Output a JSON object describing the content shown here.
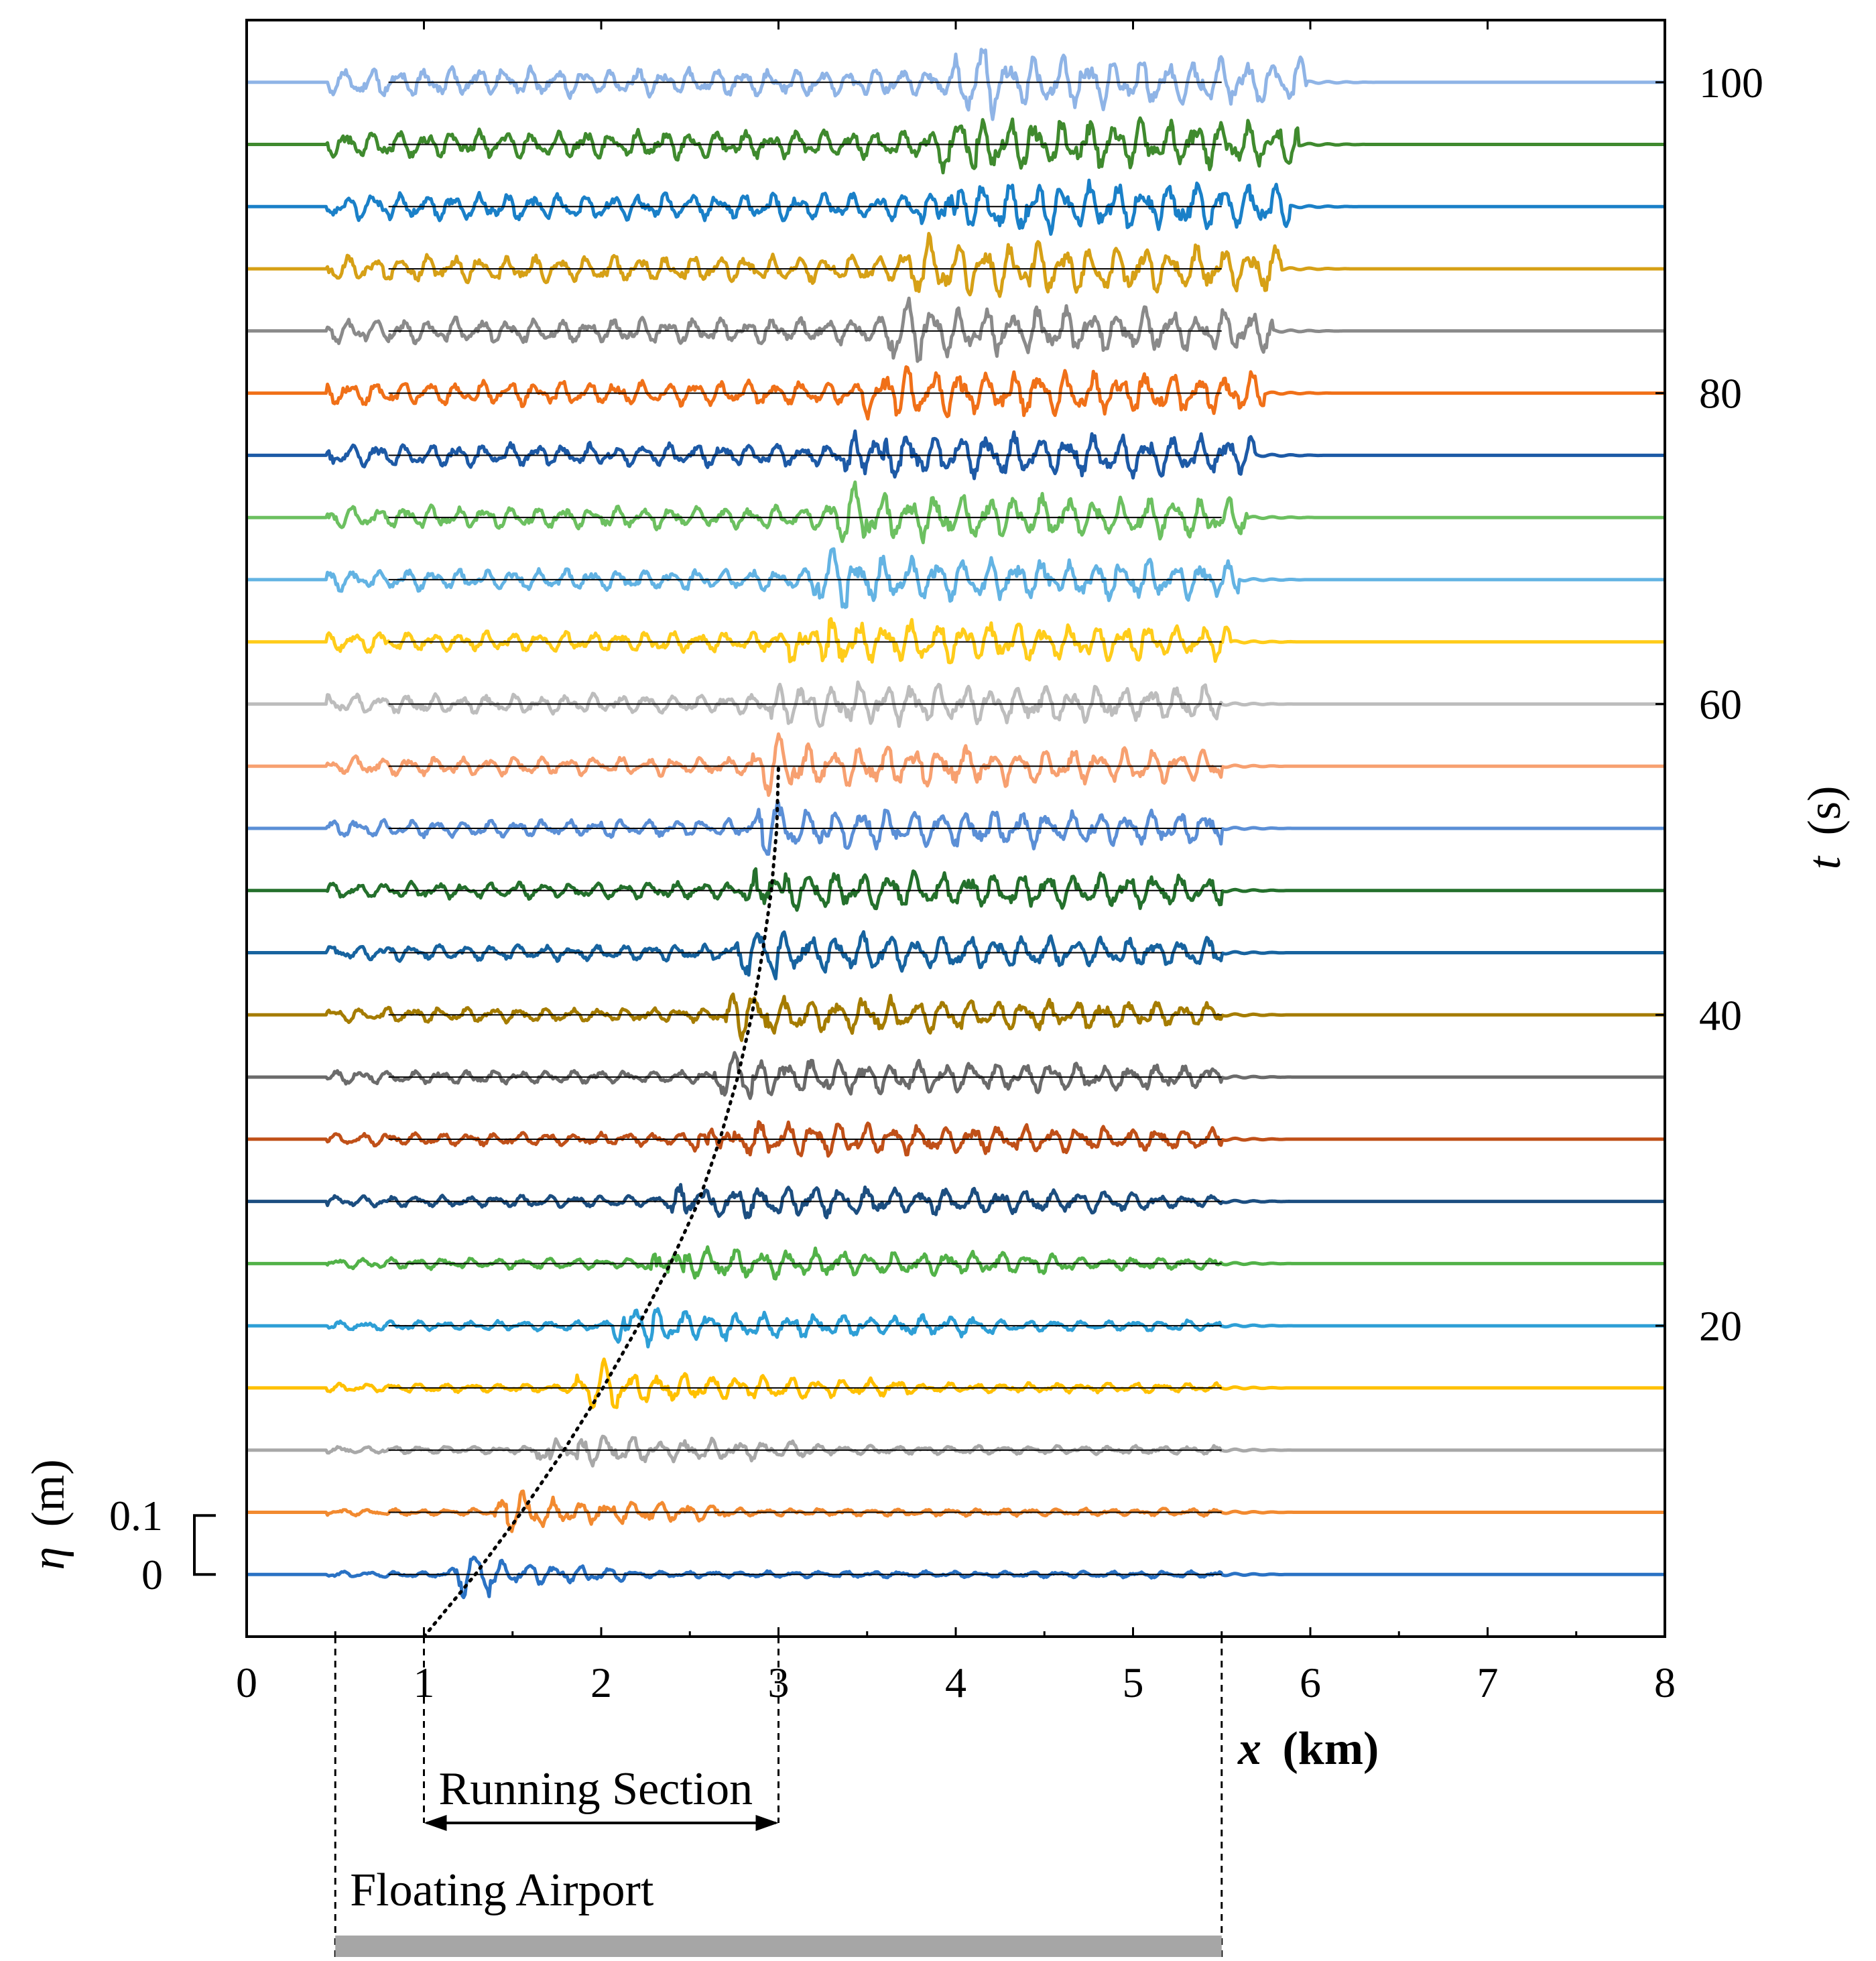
{
  "chart_data": {
    "type": "line",
    "description_axes": {
      "x_label_symbol": "x",
      "x_label_unit": "(km)",
      "y_label_symbol": "t",
      "y_label_unit": "(s)",
      "eta_label_symbol": "η",
      "eta_label_unit": "(m)"
    },
    "xlim": [
      0,
      8
    ],
    "x_ticks": [
      "0",
      "1",
      "2",
      "3",
      "4",
      "5",
      "6",
      "7",
      "8"
    ],
    "tlim": [
      0,
      104
    ],
    "t_ticks": [
      {
        "value": 20,
        "label": "20"
      },
      {
        "value": 40,
        "label": "40"
      },
      {
        "value": 60,
        "label": "60"
      },
      {
        "value": 80,
        "label": "80"
      },
      {
        "value": 100,
        "label": "100"
      }
    ],
    "eta_scale": {
      "values": [
        0,
        0.1
      ],
      "labels": [
        "0",
        "0.1"
      ]
    },
    "trace_times": [
      4,
      8,
      12,
      16,
      20,
      24,
      28,
      32,
      36,
      40,
      44,
      48,
      52,
      56,
      60,
      64,
      68,
      72,
      76,
      80,
      84,
      88,
      92,
      96,
      100
    ],
    "trace_colors": [
      "#2a72c4",
      "#f28a30",
      "#a8a8a8",
      "#ffc000",
      "#2e9fd6",
      "#52b248",
      "#1c4e80",
      "#c05018",
      "#6b6b6b",
      "#a57c00",
      "#17639f",
      "#24702c",
      "#5b8fd6",
      "#f7a070",
      "#bdbdbd",
      "#ffcc1a",
      "#63b3e3",
      "#6cc060",
      "#1d5aa6",
      "#f07018",
      "#8a8a8a",
      "#d6a016",
      "#1a80c8",
      "#3f8a2e",
      "#8fb4e6"
    ],
    "moving_load_path": {
      "style": "dotted",
      "t": [
        0,
        4,
        8,
        12,
        16,
        20,
        24,
        28,
        32,
        36,
        40,
        44,
        48,
        52,
        56
      ],
      "x": [
        1.0,
        1.29,
        1.55,
        1.79,
        2.01,
        2.21,
        2.39,
        2.55,
        2.67,
        2.77,
        2.85,
        2.91,
        2.96,
        2.99,
        3.0
      ]
    },
    "annotations": {
      "running_section": {
        "label": "Running Section",
        "x_start": 1.0,
        "x_end": 3.0
      },
      "floating_airport": {
        "label": "Floating Airport",
        "x_start": 0.5,
        "x_end": 5.5
      }
    }
  }
}
